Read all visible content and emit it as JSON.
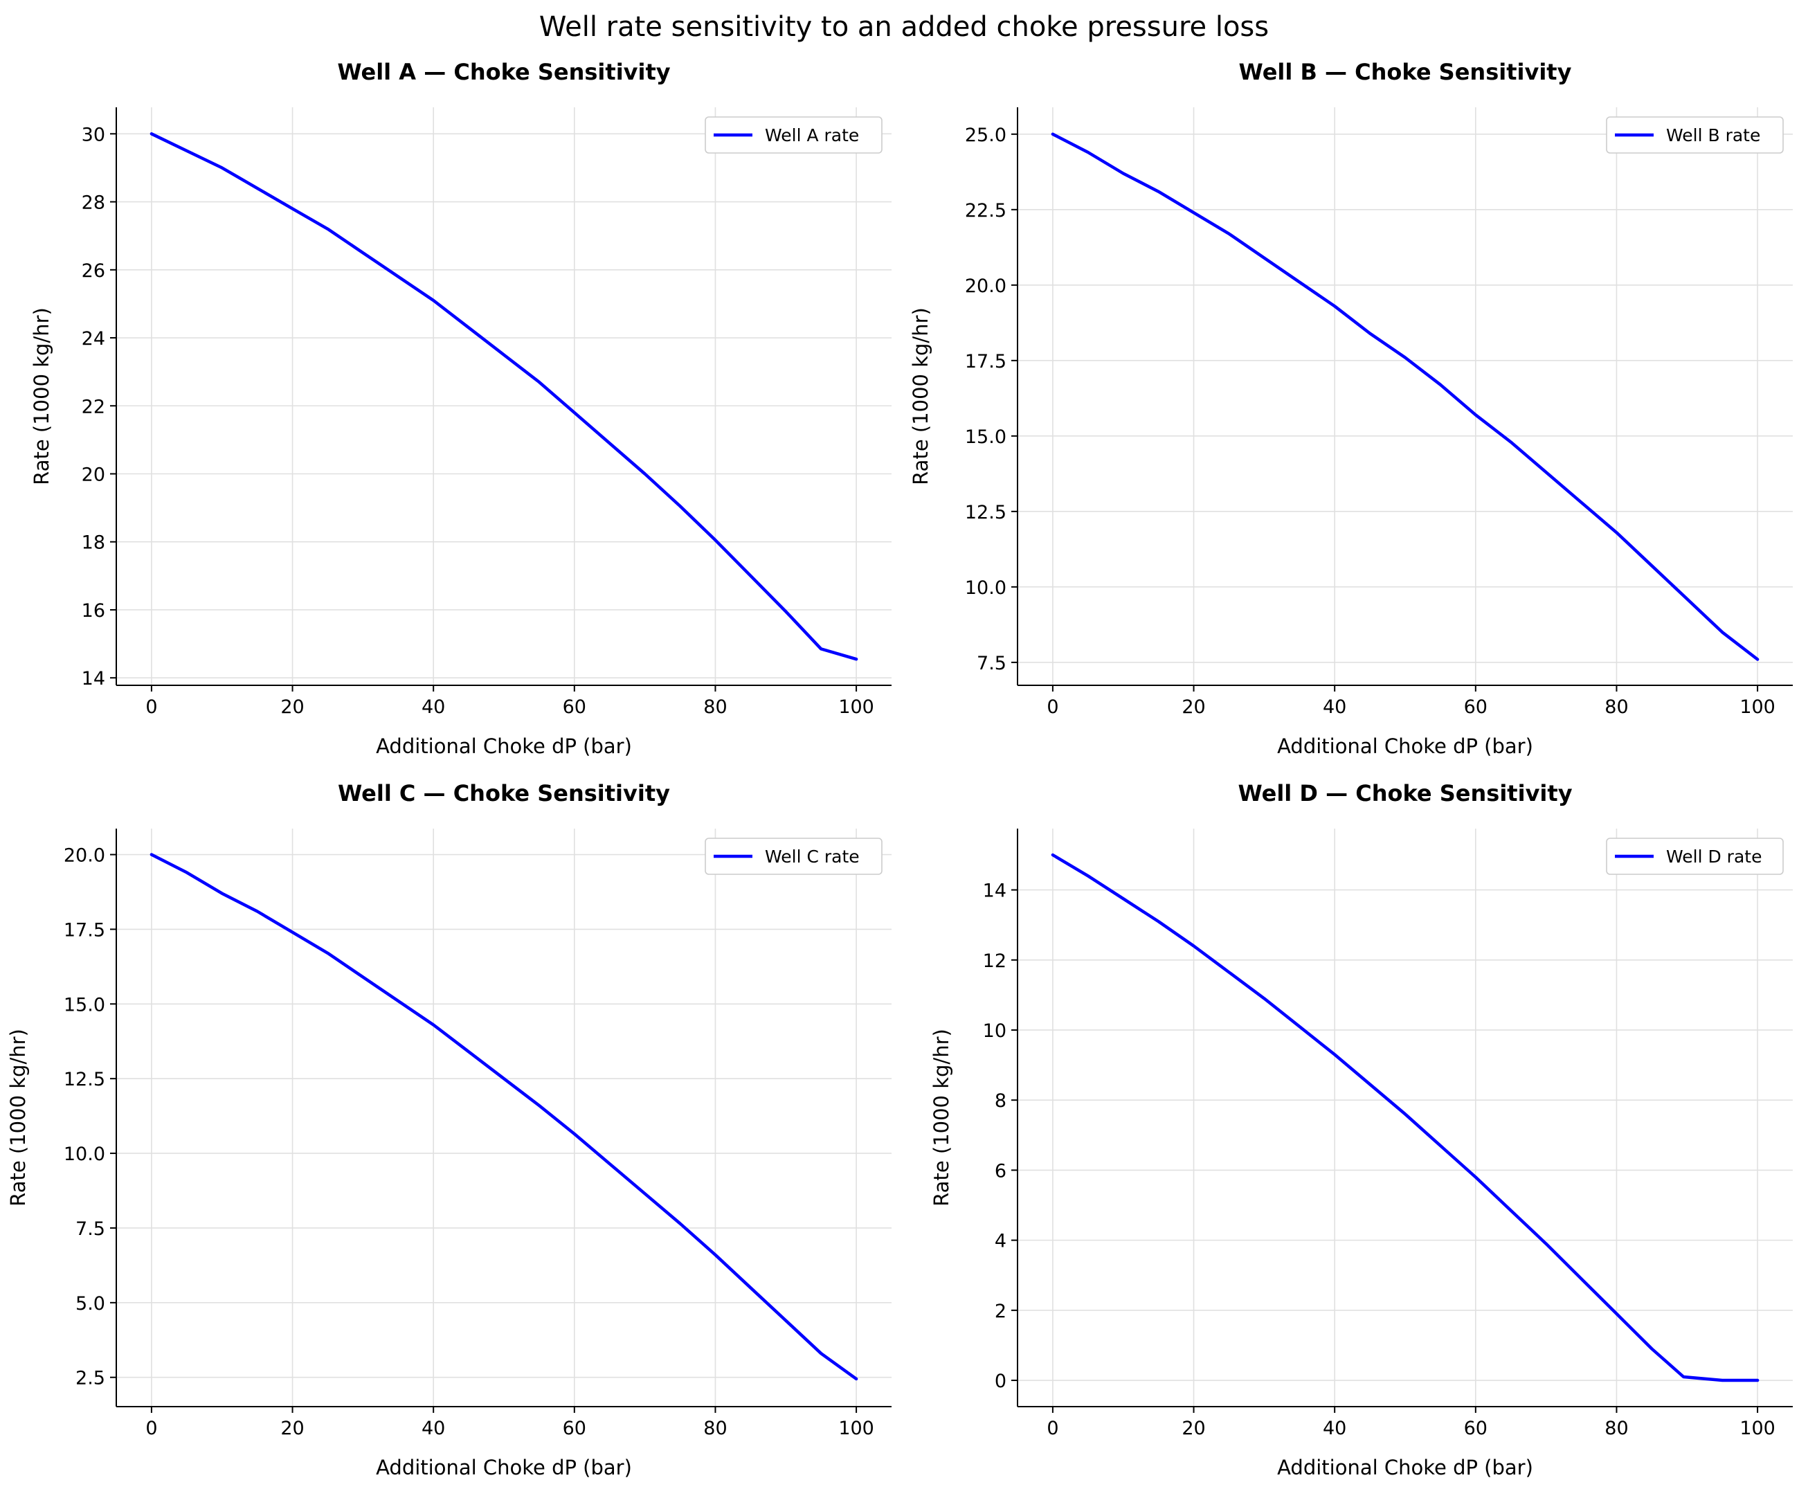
{
  "figure": {
    "title": "Well rate sensitivity to an added choke pressure loss"
  },
  "colors": {
    "line": "#0000ff",
    "grid": "#e0e0e0",
    "axis": "#000000"
  },
  "chart_data": [
    {
      "type": "line",
      "title": "Well A — Choke Sensitivity",
      "xlabel": "Additional Choke dP (bar)",
      "ylabel": "Rate (1000 kg/hr)",
      "xlim": [
        -5,
        105
      ],
      "ylim": [
        13.78,
        30.78
      ],
      "xticks": [
        0,
        20,
        40,
        60,
        80,
        100
      ],
      "yticks": [
        14,
        16,
        18,
        20,
        22,
        24,
        26,
        28,
        30
      ],
      "ytick_labels": [
        "14",
        "16",
        "18",
        "20",
        "22",
        "24",
        "26",
        "28",
        "30"
      ],
      "grid": true,
      "legend_position": "upper right",
      "series": [
        {
          "name": "Well A rate",
          "x": [
            0,
            5,
            10,
            15,
            20,
            25,
            30,
            35,
            40,
            45,
            50,
            55,
            60,
            65,
            70,
            75,
            80,
            85,
            90,
            95,
            100
          ],
          "y": [
            30.0,
            29.5,
            29.0,
            28.4,
            27.8,
            27.2,
            26.5,
            25.8,
            25.1,
            24.3,
            23.5,
            22.7,
            21.8,
            20.9,
            20.0,
            19.05,
            18.05,
            17.0,
            15.95,
            14.85,
            14.55
          ]
        }
      ]
    },
    {
      "type": "line",
      "title": "Well B — Choke Sensitivity",
      "xlabel": "Additional Choke dP (bar)",
      "ylabel": "Rate (1000 kg/hr)",
      "xlim": [
        -5,
        105
      ],
      "ylim": [
        6.74,
        25.89
      ],
      "xticks": [
        0,
        20,
        40,
        60,
        80,
        100
      ],
      "yticks": [
        7.5,
        10.0,
        12.5,
        15.0,
        17.5,
        20.0,
        22.5,
        25.0
      ],
      "ytick_labels": [
        "7.5",
        "10.0",
        "12.5",
        "15.0",
        "17.5",
        "20.0",
        "22.5",
        "25.0"
      ],
      "grid": true,
      "legend_position": "upper right",
      "series": [
        {
          "name": "Well B rate",
          "x": [
            0,
            5,
            10,
            15,
            20,
            25,
            30,
            35,
            40,
            45,
            50,
            55,
            60,
            65,
            70,
            75,
            80,
            85,
            90,
            95,
            100
          ],
          "y": [
            25.0,
            24.4,
            23.7,
            23.1,
            22.4,
            21.7,
            20.9,
            20.1,
            19.3,
            18.4,
            17.6,
            16.7,
            15.7,
            14.8,
            13.8,
            12.8,
            11.8,
            10.7,
            9.6,
            8.5,
            7.6
          ]
        }
      ]
    },
    {
      "type": "line",
      "title": "Well C — Choke Sensitivity",
      "xlabel": "Additional Choke dP (bar)",
      "ylabel": "Rate (1000 kg/hr)",
      "xlim": [
        -5,
        105
      ],
      "ylim": [
        1.52,
        20.87
      ],
      "xticks": [
        0,
        20,
        40,
        60,
        80,
        100
      ],
      "yticks": [
        2.5,
        5.0,
        7.5,
        10.0,
        12.5,
        15.0,
        17.5,
        20.0
      ],
      "ytick_labels": [
        "2.5",
        "5.0",
        "7.5",
        "10.0",
        "12.5",
        "15.0",
        "17.5",
        "20.0"
      ],
      "grid": true,
      "legend_position": "upper right",
      "series": [
        {
          "name": "Well C rate",
          "x": [
            0,
            5,
            10,
            15,
            20,
            25,
            30,
            35,
            40,
            45,
            50,
            55,
            60,
            65,
            70,
            75,
            80,
            85,
            90,
            95,
            100
          ],
          "y": [
            20.0,
            19.4,
            18.7,
            18.1,
            17.4,
            16.7,
            15.9,
            15.1,
            14.3,
            13.4,
            12.5,
            11.6,
            10.65,
            9.65,
            8.65,
            7.65,
            6.6,
            5.5,
            4.4,
            3.3,
            2.45
          ]
        }
      ]
    },
    {
      "type": "line",
      "title": "Well D — Choke Sensitivity",
      "xlabel": "Additional Choke dP (bar)",
      "ylabel": "Rate (1000 kg/hr)",
      "xlim": [
        -5,
        105
      ],
      "ylim": [
        -0.75,
        15.75
      ],
      "xticks": [
        0,
        20,
        40,
        60,
        80,
        100
      ],
      "yticks": [
        0,
        2,
        4,
        6,
        8,
        10,
        12,
        14
      ],
      "ytick_labels": [
        "0",
        "2",
        "4",
        "6",
        "8",
        "10",
        "12",
        "14"
      ],
      "grid": true,
      "legend_position": "upper right",
      "series": [
        {
          "name": "Well D rate",
          "x": [
            0,
            5,
            10,
            15,
            20,
            25,
            30,
            35,
            40,
            45,
            50,
            55,
            60,
            65,
            70,
            75,
            80,
            85,
            89.5,
            95,
            100
          ],
          "y": [
            15.0,
            14.4,
            13.75,
            13.1,
            12.4,
            11.65,
            10.9,
            10.1,
            9.3,
            8.45,
            7.6,
            6.7,
            5.8,
            4.85,
            3.9,
            2.9,
            1.9,
            0.9,
            0.1,
            0.0,
            0.0
          ]
        }
      ]
    }
  ]
}
